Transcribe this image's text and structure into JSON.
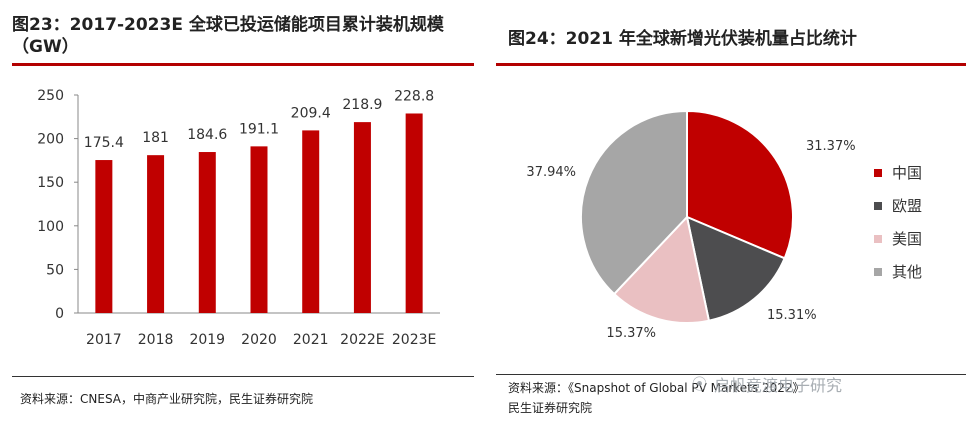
{
  "left_panel": {
    "title": "图23：2017-2023E 全球已投运储能项目累计装机规模（GW）",
    "source": "资料来源：CNESA，中商产业研究院，民生证券研究院"
  },
  "right_panel": {
    "title": "图24：2021 年全球新增光伏装机量占比统计",
    "source_line1": "资料来源：《Snapshot of Global PV Markets 2022》",
    "source_line2": "民生证券研究院",
    "watermark": "启帆竞渡电子研究"
  },
  "colors": {
    "red": "#c00000",
    "dark_gray": "#4d4d4f",
    "pink": "#eac0c2",
    "gray": "#a6a6a6",
    "accent_rule": "#b30000"
  },
  "chart_data": [
    {
      "type": "bar",
      "title": "图23：2017-2023E 全球已投运储能项目累计装机规模（GW）",
      "categories": [
        "2017",
        "2018",
        "2019",
        "2020",
        "2021",
        "2022E",
        "2023E"
      ],
      "values": [
        175.4,
        181,
        184.6,
        191.1,
        209.4,
        218.9,
        228.8
      ],
      "value_labels": [
        "175.4",
        "181",
        "184.6",
        "191.1",
        "209.4",
        "218.9",
        "228.8"
      ],
      "ylim": [
        0,
        250
      ],
      "yticks": [
        0,
        50,
        100,
        150,
        200,
        250
      ],
      "xlabel": "",
      "ylabel": "",
      "bar_color": "#c00000",
      "grid": false
    },
    {
      "type": "pie",
      "title": "图24：2021 年全球新增光伏装机量占比统计",
      "labels": [
        "中国",
        "欧盟",
        "美国",
        "其他"
      ],
      "values": [
        31.37,
        15.31,
        15.37,
        37.94
      ],
      "value_labels": [
        "31.37%",
        "15.31%",
        "15.37%",
        "37.94%"
      ],
      "colors": [
        "#c00000",
        "#4d4d4f",
        "#eac0c2",
        "#a6a6a6"
      ],
      "legend_position": "right"
    }
  ]
}
